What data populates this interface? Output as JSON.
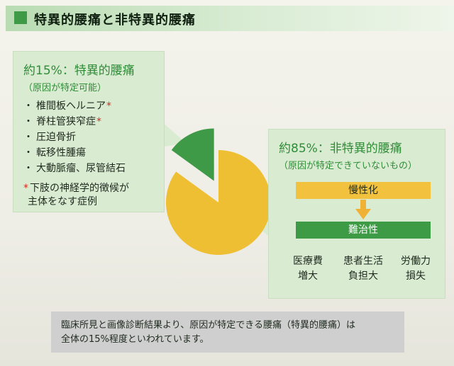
{
  "header": {
    "title": "特異的腰痛と非特異的腰痛"
  },
  "specific": {
    "title": "約15%：特異的腰痛",
    "subtitle": "（原因が特定可能）",
    "items": [
      {
        "label": "椎間板ヘルニア",
        "starred": true
      },
      {
        "label": "脊柱管狭窄症",
        "starred": true
      },
      {
        "label": "圧迫骨折",
        "starred": false
      },
      {
        "label": "転移性腫瘍",
        "starred": false
      },
      {
        "label": "大動脈瘤、尿管結石",
        "starred": false
      }
    ],
    "bullet": "・",
    "star": "*",
    "note_line1": "下肢の神経学的徴候が",
    "note_line2": "主体をなす症例"
  },
  "nonspecific": {
    "title": "約85%：非特異的腰痛",
    "subtitle": "（原因が特定できていないもの）",
    "chronic_label": "慢性化",
    "intractable_label": "難治性",
    "costs": [
      {
        "line1": "医療費",
        "line2": "増大"
      },
      {
        "line1": "患者生活",
        "line2": "負担大"
      },
      {
        "line1": "労働力",
        "line2": "損失"
      }
    ]
  },
  "chart_data": {
    "type": "pie",
    "series": [
      {
        "name": "特異的腰痛",
        "value": 15
      },
      {
        "name": "非特異的腰痛",
        "value": 85
      }
    ],
    "colors": {
      "specific": "#3e9a46",
      "nonspecific": "#efbf33"
    }
  },
  "footer": {
    "line1": "臨床所見と画像診断結果より、原因が特定できる腰痛（特異的腰痛）は",
    "line2": "全体の15%程度といわれています。"
  },
  "colors": {
    "accent_green": "#3e9a46",
    "accent_yellow": "#f2c23e",
    "panel_bg": "#d9ecd2",
    "star_red": "#d52b1e"
  }
}
